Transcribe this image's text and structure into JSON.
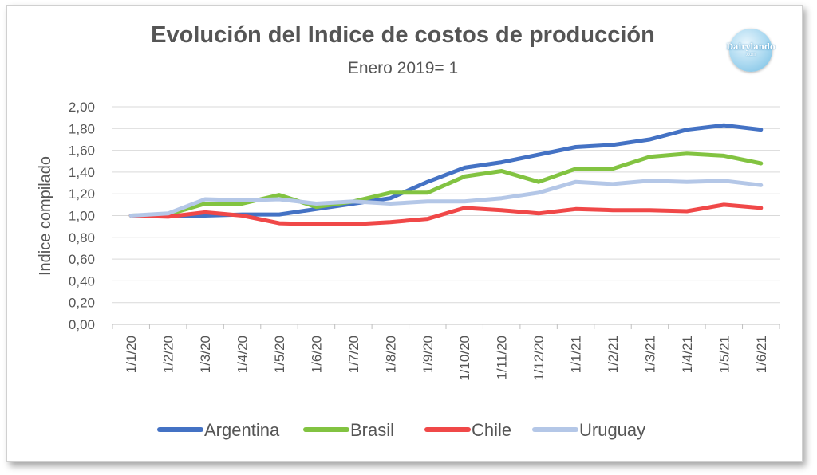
{
  "chart_data": {
    "type": "line",
    "title": "Evolución del Indice de costos de producción",
    "subtitle": "Enero 2019= 1",
    "xlabel": "",
    "ylabel": "Indice compilado",
    "ylim": [
      0,
      2
    ],
    "yticks": [
      "0,00",
      "0,20",
      "0,40",
      "0,60",
      "0,80",
      "1,00",
      "1,20",
      "1,40",
      "1,60",
      "1,80",
      "2,00"
    ],
    "grid": true,
    "legend": "bottom",
    "categories": [
      "1/1/20",
      "1/2/20",
      "1/3/20",
      "1/4/20",
      "1/5/20",
      "1/6/20",
      "1/7/20",
      "1/8/20",
      "1/9/20",
      "1/10/20",
      "1/11/20",
      "1/12/20",
      "1/1/21",
      "1/2/21",
      "1/3/21",
      "1/4/21",
      "1/5/21",
      "1/6/21"
    ],
    "series": [
      {
        "name": "Argentina",
        "color": "#4472c4",
        "values": [
          1.0,
          1.0,
          1.0,
          1.01,
          1.01,
          1.06,
          1.11,
          1.16,
          1.31,
          1.44,
          1.49,
          1.56,
          1.63,
          1.65,
          1.7,
          1.79,
          1.83,
          1.79
        ]
      },
      {
        "name": "Brasil",
        "color": "#82c341",
        "values": [
          1.0,
          1.01,
          1.11,
          1.11,
          1.19,
          1.08,
          1.13,
          1.21,
          1.21,
          1.36,
          1.41,
          1.31,
          1.43,
          1.43,
          1.54,
          1.57,
          1.55,
          1.48
        ]
      },
      {
        "name": "Chile",
        "color": "#f04848",
        "values": [
          1.0,
          0.99,
          1.03,
          1.0,
          0.93,
          0.92,
          0.92,
          0.94,
          0.97,
          1.07,
          1.05,
          1.02,
          1.06,
          1.05,
          1.05,
          1.04,
          1.1,
          1.07
        ]
      },
      {
        "name": "Uruguay",
        "color": "#b4c7e7",
        "values": [
          1.0,
          1.02,
          1.15,
          1.14,
          1.15,
          1.11,
          1.13,
          1.11,
          1.13,
          1.13,
          1.16,
          1.21,
          1.31,
          1.29,
          1.32,
          1.31,
          1.32,
          1.28
        ]
      }
    ]
  },
  "logo": {
    "line1": "Dairylando",
    "line2": ".com"
  }
}
